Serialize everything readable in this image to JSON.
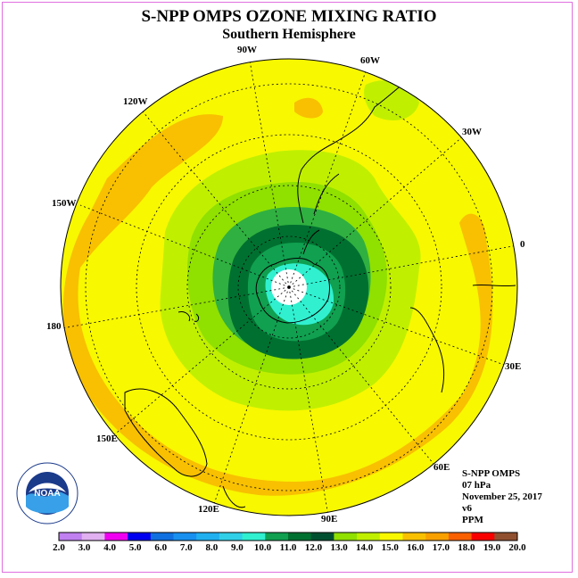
{
  "title": "S-NPP OMPS OZONE MIXING RATIO",
  "subtitle": "Southern Hemisphere",
  "longitude_labels": [
    "90W",
    "60W",
    "30W",
    "0",
    "30E",
    "60E",
    "90E",
    "120E",
    "150E",
    "180",
    "150W",
    "120W"
  ],
  "info": {
    "instrument": "S-NPP OMPS",
    "level": "07 hPa",
    "date": "November 25, 2017",
    "version": "v6",
    "units": "PPM"
  },
  "logo": {
    "text": "NOAA"
  },
  "colorbar": {
    "labels": [
      "2.0",
      "3.0",
      "4.0",
      "5.0",
      "6.0",
      "7.0",
      "8.0",
      "9.0",
      "10.0",
      "11.0",
      "12.0",
      "13.0",
      "14.0",
      "15.0",
      "16.0",
      "17.0",
      "18.0",
      "19.0",
      "20.0"
    ],
    "colors": [
      "#c080f0",
      "#e0b0f0",
      "#f000f0",
      "#0000f0",
      "#1070e0",
      "#1890f0",
      "#20b0f0",
      "#30d0e8",
      "#30f0d0",
      "#10a050",
      "#007030",
      "#005030",
      "#90e000",
      "#c0f000",
      "#f8f800",
      "#f8c000",
      "#f8a000",
      "#f86000",
      "#f80000",
      "#905030"
    ]
  },
  "legend_levels": {
    "center_min": "<10.0",
    "inner_ring": "10.0-11.0",
    "dark_ring": "11.0-12.0",
    "outer_field": "15.0-16.0"
  }
}
